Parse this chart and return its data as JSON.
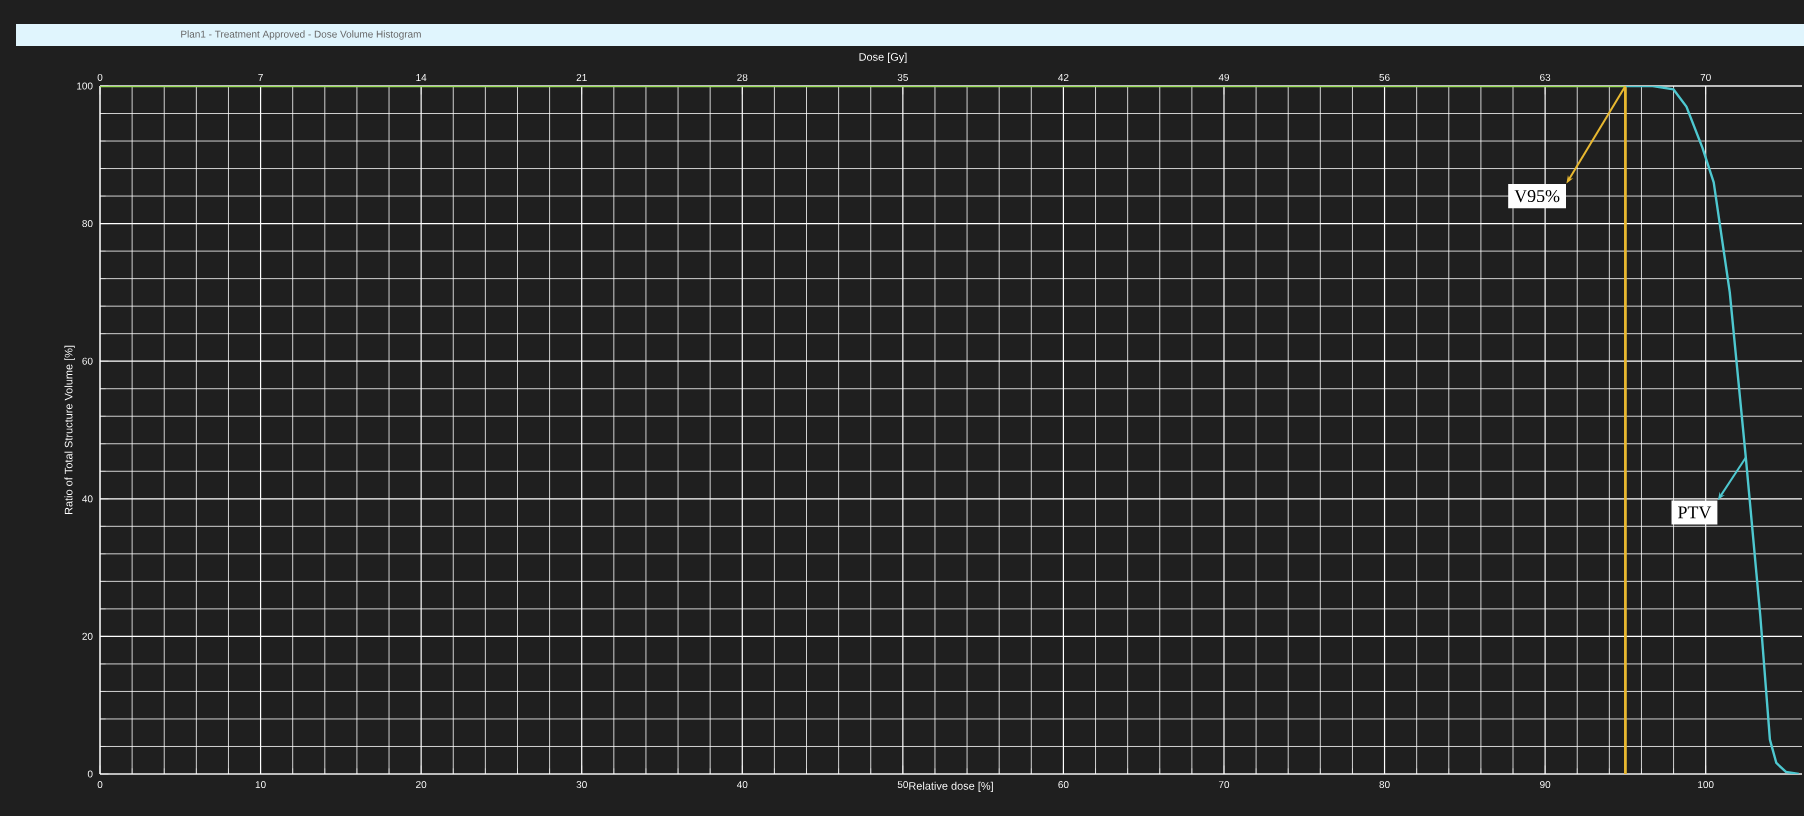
{
  "chart_data": {
    "type": "line",
    "title": "Plan1 - Treatment Approved - Dose Volume Histogram",
    "xlabel": "Relative dose [%]",
    "ylabel": "Ratio of Total Structure Volume [%]",
    "x2label": "Dose [Gy]",
    "xlim": [
      0,
      106
    ],
    "xticks": [
      0,
      10,
      20,
      30,
      40,
      50,
      60,
      70,
      80,
      90,
      100
    ],
    "x2lim": [
      0,
      74.2
    ],
    "x2ticks": [
      0,
      7,
      14,
      21,
      28,
      35,
      42,
      49,
      56,
      63,
      70
    ],
    "ylim": [
      0,
      100
    ],
    "yticks": [
      0,
      20,
      40,
      60,
      80,
      100
    ],
    "grid": true,
    "series": [
      {
        "color": "#4ec8d0",
        "x": [
          95,
          96.7,
          98.0,
          98.8,
          99.8,
          100.5,
          101.5,
          102.5,
          103.4,
          104.0,
          104.4,
          105.0,
          105.8
        ],
        "values": [
          100,
          100,
          99.5,
          97,
          91,
          86,
          70,
          46,
          23,
          5,
          1.6,
          0.3,
          0
        ]
      },
      {
        "color": "#9be05a",
        "x": [
          0,
          95
        ],
        "values": [
          100,
          100
        ]
      }
    ],
    "ref_lines": [
      {
        "axis": "x",
        "value": 95,
        "color": "#e8b830"
      }
    ],
    "annotations": [
      {
        "text": "V95%",
        "x": 95,
        "y": 100
      },
      {
        "text": "PTV",
        "x": 102.5,
        "y": 46
      }
    ]
  }
}
